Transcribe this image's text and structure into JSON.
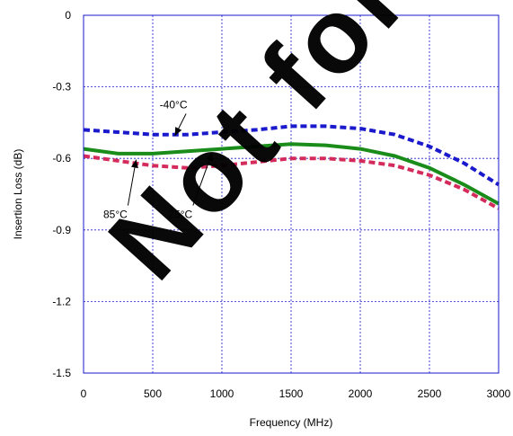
{
  "chart_data": {
    "type": "line",
    "title": "",
    "xlabel": "Frequency (MHz)",
    "ylabel": "Insertion Loss (dB)",
    "xlim": [
      0,
      3000
    ],
    "ylim": [
      -1.5,
      0
    ],
    "x_ticks": [
      0,
      500,
      1000,
      1500,
      2000,
      2500,
      3000
    ],
    "y_ticks": [
      0,
      -0.3,
      -0.6,
      -0.9,
      -1.2,
      -1.5
    ],
    "x_tick_labels": [
      "0",
      "500",
      "1000",
      "1500",
      "2000",
      "2500",
      "3000"
    ],
    "y_tick_labels": [
      "0",
      "-0.3",
      "-0.6",
      "-0.9",
      "-1.2",
      "-1.5"
    ],
    "grid": true,
    "watermark": "Not for new designs",
    "colors": {
      "grid": "#1a1acc",
      "axes_frame": "#1a1acc",
      "watermark": "#000000"
    },
    "series": [
      {
        "name": "-40°C",
        "color": "#1a1acc",
        "dashed": true,
        "x": [
          0,
          250,
          500,
          750,
          1000,
          1250,
          1500,
          1750,
          2000,
          2250,
          2500,
          2750,
          3000
        ],
        "y": [
          -0.48,
          -0.49,
          -0.5,
          -0.5,
          -0.49,
          -0.48,
          -0.465,
          -0.465,
          -0.475,
          -0.5,
          -0.55,
          -0.62,
          -0.71
        ]
      },
      {
        "name": "25°C",
        "color": "#1a8c1a",
        "dashed": false,
        "x": [
          0,
          250,
          500,
          750,
          1000,
          1250,
          1500,
          1750,
          2000,
          2250,
          2500,
          2750,
          3000
        ],
        "y": [
          -0.56,
          -0.58,
          -0.58,
          -0.57,
          -0.56,
          -0.55,
          -0.54,
          -0.545,
          -0.56,
          -0.59,
          -0.64,
          -0.71,
          -0.79
        ]
      },
      {
        "name": "85°C",
        "color": "#d42b5c",
        "dashed": true,
        "x": [
          0,
          250,
          500,
          750,
          1000,
          1250,
          1500,
          1750,
          2000,
          2250,
          2500,
          2750,
          3000
        ],
        "y": [
          -0.59,
          -0.61,
          -0.63,
          -0.64,
          -0.63,
          -0.615,
          -0.6,
          -0.6,
          -0.61,
          -0.63,
          -0.67,
          -0.73,
          -0.81
        ]
      }
    ],
    "annotations": [
      {
        "text": "-40°C",
        "series": "-40°C",
        "label_at": [
          650,
          -0.39
        ],
        "arrow_to": [
          660,
          -0.505
        ]
      },
      {
        "text": "85°C",
        "series": "85°C",
        "label_at": [
          230,
          -0.85
        ],
        "arrow_to": [
          380,
          -0.605
        ]
      },
      {
        "text": "25°C",
        "series": "25°C",
        "label_at": [
          700,
          -0.85
        ],
        "arrow_to": [
          930,
          -0.575
        ]
      }
    ]
  }
}
